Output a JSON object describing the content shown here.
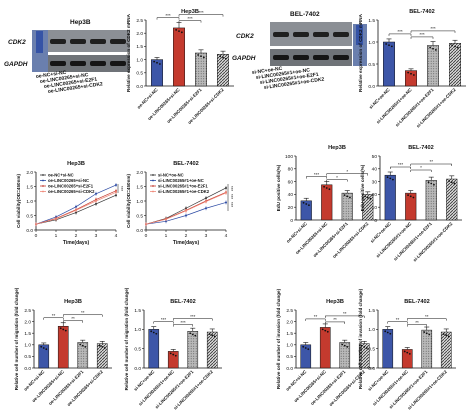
{
  "colors": {
    "blue": "#3d56a8",
    "red": "#c43a2e",
    "grey": "#9a9a9a",
    "dark": "#2b2b2b",
    "line1": "#333333",
    "line2": "#2b49a3",
    "line3": "#c43a2e",
    "line4": "#ef8a7a"
  },
  "blots": [
    {
      "title": "Hep3B",
      "rows": [
        "CDK2",
        "GAPDH"
      ]
    },
    {
      "title": "BEL-7402",
      "rows": [
        "CDK2",
        "GAPDH"
      ]
    }
  ],
  "blot_lanes": {
    "hep": [
      "oe-NC+si-NC",
      "oe-LINC00265+si-NC",
      "oe-LINC00265+si-E2F1",
      "oe-LINC00265+si-CDK2"
    ],
    "bel": [
      "si-NC+oe-NC",
      "si-LINC00265#1+oe-NC",
      "si-LINC00265#1+oe-E2F1",
      "si-LINC00265#1+oe-CDK2"
    ]
  },
  "chart_data": [
    {
      "type": "bar",
      "title": "Hep3B",
      "ylabel": "Relative expression of CDK2 mRNA",
      "ylim": [
        0,
        2.5
      ],
      "yticks": [
        "0.0",
        "0.5",
        "1.0",
        "1.5",
        "2.0",
        "2.5"
      ],
      "categories": [
        "oe-NC+si-NC",
        "oe-LINC00265+si-NC",
        "oe-LINC00265+si-E2F1",
        "oe-LINC00265+si-CDK2"
      ],
      "values": [
        1.0,
        2.2,
        1.25,
        1.2
      ],
      "errors": [
        0.08,
        0.2,
        0.12,
        0.12
      ],
      "fills": [
        "blue",
        "red",
        "grey",
        "dark"
      ],
      "sig": [
        "***",
        "***",
        "***"
      ]
    },
    {
      "type": "bar",
      "title": "BEL-7402",
      "ylabel": "Relative expression of CDK2 mRNA",
      "ylim": [
        0,
        1.5
      ],
      "yticks": [
        "0.0",
        "0.5",
        "1.0",
        "1.5"
      ],
      "categories": [
        "si-NC+oe-NC",
        "si-LINC00265#1+oe-NC",
        "si-LINC00265#1+oe-E2F1",
        "si-LINC00265#1+oe-CDK2"
      ],
      "values": [
        1.0,
        0.35,
        0.92,
        0.97
      ],
      "errors": [
        0.07,
        0.04,
        0.09,
        0.07
      ],
      "fills": [
        "blue",
        "red",
        "grey",
        "dark"
      ],
      "sig": [
        "***",
        "***",
        "***"
      ]
    },
    {
      "type": "line",
      "title": "Hep3B",
      "xlabel": "Time(days)",
      "ylabel": "Cell viability(OD=450nm)",
      "ylim": [
        0,
        2.0
      ],
      "yticks": [
        "0.0",
        "0.5",
        "1.0",
        "1.5",
        "2.0"
      ],
      "x": [
        0,
        1,
        2,
        3,
        4
      ],
      "series": [
        {
          "name": "oe-NC+si-NC",
          "values": [
            0.2,
            0.35,
            0.6,
            0.9,
            1.2
          ]
        },
        {
          "name": "oe-LINC00265+si-NC",
          "values": [
            0.2,
            0.45,
            0.8,
            1.25,
            1.55
          ]
        },
        {
          "name": "oe-LINC00265+si-E2F1",
          "values": [
            0.2,
            0.4,
            0.7,
            1.05,
            1.35
          ]
        },
        {
          "name": "oe-LINC00265+si-CDK2",
          "values": [
            0.2,
            0.38,
            0.68,
            1.0,
            1.3
          ]
        }
      ],
      "sig": [
        "***"
      ]
    },
    {
      "type": "line",
      "title": "BEL-7402",
      "xlabel": "Time(days)",
      "ylabel": "Cell viability(OD=450nm)",
      "ylim": [
        0,
        2.0
      ],
      "yticks": [
        "0.0",
        "0.5",
        "1.0",
        "1.5",
        "2.0"
      ],
      "x": [
        0,
        1,
        2,
        3,
        4
      ],
      "series": [
        {
          "name": "si-NC+oe-NC",
          "values": [
            0.2,
            0.4,
            0.75,
            1.1,
            1.45
          ]
        },
        {
          "name": "si-LINC00265#1+oe-NC",
          "values": [
            0.2,
            0.3,
            0.5,
            0.75,
            0.95
          ]
        },
        {
          "name": "si-LINC00265#1+oe-E2F1",
          "values": [
            0.2,
            0.38,
            0.68,
            1.0,
            1.3
          ]
        },
        {
          "name": "si-LINC00265#1+oe-CDK2",
          "values": [
            0.2,
            0.37,
            0.66,
            0.98,
            1.28
          ]
        }
      ],
      "sig": [
        "***",
        "***",
        "***"
      ]
    },
    {
      "type": "bar",
      "title": "Hep3B",
      "ylabel": "EdU positive cells(%)",
      "ylim": [
        0,
        100
      ],
      "yticks": [
        "0",
        "20",
        "40",
        "60",
        "80",
        "100"
      ],
      "categories": [
        "oe-NC+si-NC",
        "oe-LINC00265+si-NC",
        "oe-LINC00265+si-E2F1",
        "oe-LINC00265+si-CDK2"
      ],
      "values": [
        30,
        55,
        42,
        40
      ],
      "errors": [
        4,
        5,
        4,
        4
      ],
      "fills": [
        "blue",
        "red",
        "grey",
        "dark"
      ],
      "sig": [
        "***",
        "*",
        "*"
      ]
    },
    {
      "type": "bar",
      "title": "BEL-7402",
      "ylabel": "EdU positive cells(%)",
      "ylim": [
        0,
        50
      ],
      "yticks": [
        "0",
        "10",
        "20",
        "30",
        "40",
        "50"
      ],
      "categories": [
        "si-NC+oe-NC",
        "si-LINC00265#1+oe-NC",
        "si-LINC00265#1+oe-E2F1",
        "si-LINC00265#1+oe-CDK2"
      ],
      "values": [
        35,
        21,
        31,
        32
      ],
      "errors": [
        2.5,
        2,
        2.5,
        2.5
      ],
      "fills": [
        "blue",
        "red",
        "grey",
        "dark"
      ],
      "sig": [
        "***",
        "*",
        "**"
      ]
    },
    {
      "type": "bar",
      "title": "Hep3B",
      "ylabel": "Relative cell number of migration (fold change)",
      "ylim": [
        0,
        2.5
      ],
      "yticks": [
        "0.0",
        "0.5",
        "1.0",
        "1.5",
        "2.0",
        "2.5"
      ],
      "categories": [
        "oe-NC+si-NC",
        "oe-LINC00265+si-NC",
        "oe-LINC00265+si-E2F1",
        "oe-LINC00265+si-CDK2"
      ],
      "values": [
        1.0,
        1.8,
        1.1,
        1.05
      ],
      "errors": [
        0.08,
        0.15,
        0.1,
        0.1
      ],
      "fills": [
        "blue",
        "red",
        "grey",
        "dark"
      ],
      "sig": [
        "**",
        "**",
        "**"
      ]
    },
    {
      "type": "bar",
      "title": "BEL-7402",
      "ylabel": "Relative cell number of migration (fold change)",
      "ylim": [
        0,
        1.5
      ],
      "yticks": [
        "0.0",
        "0.5",
        "1.0",
        "1.5"
      ],
      "categories": [
        "si-NC+oe-NC",
        "si-LINC00265#1+oe-NC",
        "si-LINC00265#1+oe-E2F1",
        "si-LINC00265#1+oe-CDK2"
      ],
      "values": [
        1.0,
        0.43,
        0.95,
        0.93
      ],
      "errors": [
        0.07,
        0.05,
        0.08,
        0.08
      ],
      "fills": [
        "blue",
        "red",
        "grey",
        "dark"
      ],
      "sig": [
        "***",
        "***",
        "***"
      ]
    },
    {
      "type": "bar",
      "title": "Hep3B",
      "ylabel": "Relative cell number of invasion (fold change)",
      "ylim": [
        0,
        2.5
      ],
      "yticks": [
        "0.0",
        "0.5",
        "1.0",
        "1.5",
        "2.0",
        "2.5"
      ],
      "categories": [
        "oe-NC+si-NC",
        "oe-LINC00265+si-NC",
        "oe-LINC00265+si-E2F1",
        "oe-LINC00265+si-CDK2"
      ],
      "values": [
        1.0,
        1.75,
        1.1,
        1.05
      ],
      "errors": [
        0.1,
        0.15,
        0.1,
        0.1
      ],
      "fills": [
        "blue",
        "red",
        "grey",
        "dark"
      ],
      "sig": [
        "**",
        "**",
        "**"
      ]
    },
    {
      "type": "bar",
      "title": "BEL-7402",
      "ylabel": "Relative cell number of invasion (fold change)",
      "ylim": [
        0,
        1.5
      ],
      "yticks": [
        "0.0",
        "0.5",
        "1.0",
        "1.5"
      ],
      "categories": [
        "si-NC+oe-NC",
        "si-LINC00265#1+oe-NC",
        "si-LINC00265#1+oe-E2F1",
        "si-LINC00265#1+oe-CDK2"
      ],
      "values": [
        1.0,
        0.48,
        0.98,
        0.93
      ],
      "errors": [
        0.07,
        0.05,
        0.08,
        0.08
      ],
      "fills": [
        "blue",
        "red",
        "grey",
        "dark"
      ],
      "sig": [
        "**",
        "**",
        "**"
      ]
    }
  ]
}
